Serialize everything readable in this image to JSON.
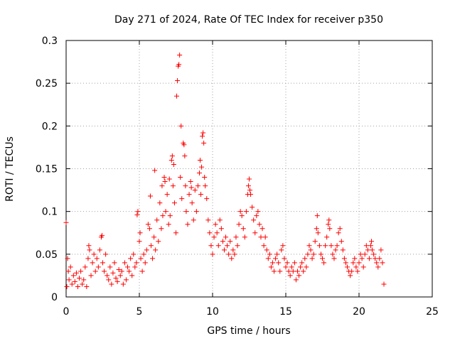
{
  "chart_data": {
    "type": "scatter",
    "title": "Day 271 of 2024, Rate Of TEC Index for receiver p350",
    "xlabel": "GPS time / hours",
    "ylabel": "ROTI / TECUs",
    "xlim": [
      0,
      25
    ],
    "ylim": [
      0,
      0.3
    ],
    "xticks": [
      0,
      5,
      10,
      15,
      20,
      25
    ],
    "yticks": [
      0,
      0.05,
      0.1,
      0.15,
      0.2,
      0.25,
      0.3
    ],
    "xtick_labels": [
      "0",
      "5",
      "10",
      "15",
      "20",
      "25"
    ],
    "ytick_labels": [
      "0",
      "0.05",
      "0.1",
      "0.15",
      "0.2",
      "0.25",
      "0.3"
    ],
    "grid": true,
    "legend": "none",
    "marker": "+",
    "color": "#ff0000",
    "points": [
      [
        0.0,
        0.087
      ],
      [
        0.05,
        0.012
      ],
      [
        0.1,
        0.045
      ],
      [
        0.15,
        0.03
      ],
      [
        0.2,
        0.02
      ],
      [
        0.3,
        0.035
      ],
      [
        0.4,
        0.015
      ],
      [
        0.5,
        0.025
      ],
      [
        0.6,
        0.018
      ],
      [
        0.7,
        0.028
      ],
      [
        0.8,
        0.012
      ],
      [
        0.9,
        0.022
      ],
      [
        1.0,
        0.03
      ],
      [
        1.1,
        0.015
      ],
      [
        1.2,
        0.02
      ],
      [
        1.3,
        0.035
      ],
      [
        1.4,
        0.012
      ],
      [
        1.5,
        0.045
      ],
      [
        1.55,
        0.06
      ],
      [
        1.6,
        0.055
      ],
      [
        1.7,
        0.025
      ],
      [
        1.8,
        0.04
      ],
      [
        1.9,
        0.05
      ],
      [
        2.0,
        0.03
      ],
      [
        2.1,
        0.045
      ],
      [
        2.2,
        0.035
      ],
      [
        2.3,
        0.055
      ],
      [
        2.4,
        0.07
      ],
      [
        2.45,
        0.072
      ],
      [
        2.5,
        0.04
      ],
      [
        2.6,
        0.03
      ],
      [
        2.7,
        0.05
      ],
      [
        2.8,
        0.025
      ],
      [
        2.9,
        0.02
      ],
      [
        3.0,
        0.035
      ],
      [
        3.1,
        0.015
      ],
      [
        3.2,
        0.028
      ],
      [
        3.3,
        0.04
      ],
      [
        3.4,
        0.022
      ],
      [
        3.5,
        0.018
      ],
      [
        3.6,
        0.032
      ],
      [
        3.7,
        0.025
      ],
      [
        3.8,
        0.03
      ],
      [
        3.9,
        0.015
      ],
      [
        4.0,
        0.04
      ],
      [
        4.1,
        0.02
      ],
      [
        4.2,
        0.035
      ],
      [
        4.3,
        0.03
      ],
      [
        4.4,
        0.045
      ],
      [
        4.5,
        0.025
      ],
      [
        4.6,
        0.05
      ],
      [
        4.7,
        0.035
      ],
      [
        4.8,
        0.04
      ],
      [
        4.85,
        0.096
      ],
      [
        4.9,
        0.1
      ],
      [
        5.0,
        0.065
      ],
      [
        5.05,
        0.075
      ],
      [
        5.1,
        0.045
      ],
      [
        5.2,
        0.03
      ],
      [
        5.3,
        0.05
      ],
      [
        5.4,
        0.04
      ],
      [
        5.5,
        0.055
      ],
      [
        5.6,
        0.085
      ],
      [
        5.7,
        0.08
      ],
      [
        5.75,
        0.118
      ],
      [
        5.8,
        0.06
      ],
      [
        5.9,
        0.045
      ],
      [
        6.0,
        0.07
      ],
      [
        6.05,
        0.148
      ],
      [
        6.1,
        0.055
      ],
      [
        6.2,
        0.09
      ],
      [
        6.3,
        0.065
      ],
      [
        6.4,
        0.11
      ],
      [
        6.5,
        0.08
      ],
      [
        6.55,
        0.13
      ],
      [
        6.6,
        0.095
      ],
      [
        6.7,
        0.14
      ],
      [
        6.75,
        0.135
      ],
      [
        6.8,
        0.1
      ],
      [
        6.9,
        0.12
      ],
      [
        7.0,
        0.085
      ],
      [
        7.05,
        0.138
      ],
      [
        7.1,
        0.095
      ],
      [
        7.2,
        0.16
      ],
      [
        7.25,
        0.165
      ],
      [
        7.3,
        0.13
      ],
      [
        7.35,
        0.155
      ],
      [
        7.4,
        0.11
      ],
      [
        7.5,
        0.075
      ],
      [
        7.55,
        0.235
      ],
      [
        7.6,
        0.253
      ],
      [
        7.65,
        0.27
      ],
      [
        7.7,
        0.272
      ],
      [
        7.75,
        0.283
      ],
      [
        7.8,
        0.14
      ],
      [
        7.85,
        0.2
      ],
      [
        7.9,
        0.115
      ],
      [
        8.0,
        0.18
      ],
      [
        8.05,
        0.178
      ],
      [
        8.1,
        0.165
      ],
      [
        8.15,
        0.13
      ],
      [
        8.2,
        0.1
      ],
      [
        8.3,
        0.085
      ],
      [
        8.4,
        0.12
      ],
      [
        8.5,
        0.135
      ],
      [
        8.55,
        0.128
      ],
      [
        8.6,
        0.11
      ],
      [
        8.7,
        0.09
      ],
      [
        8.8,
        0.125
      ],
      [
        8.9,
        0.1
      ],
      [
        9.0,
        0.13
      ],
      [
        9.1,
        0.145
      ],
      [
        9.15,
        0.16
      ],
      [
        9.2,
        0.12
      ],
      [
        9.25,
        0.152
      ],
      [
        9.3,
        0.188
      ],
      [
        9.35,
        0.192
      ],
      [
        9.4,
        0.18
      ],
      [
        9.45,
        0.14
      ],
      [
        9.5,
        0.13
      ],
      [
        9.6,
        0.115
      ],
      [
        9.7,
        0.09
      ],
      [
        9.8,
        0.075
      ],
      [
        9.9,
        0.06
      ],
      [
        10.0,
        0.05
      ],
      [
        10.1,
        0.07
      ],
      [
        10.2,
        0.085
      ],
      [
        10.3,
        0.075
      ],
      [
        10.4,
        0.06
      ],
      [
        10.5,
        0.09
      ],
      [
        10.6,
        0.08
      ],
      [
        10.7,
        0.065
      ],
      [
        10.8,
        0.055
      ],
      [
        10.9,
        0.07
      ],
      [
        11.0,
        0.06
      ],
      [
        11.1,
        0.05
      ],
      [
        11.2,
        0.065
      ],
      [
        11.3,
        0.045
      ],
      [
        11.4,
        0.055
      ],
      [
        11.5,
        0.05
      ],
      [
        11.6,
        0.07
      ],
      [
        11.7,
        0.06
      ],
      [
        11.8,
        0.085
      ],
      [
        11.9,
        0.1
      ],
      [
        12.0,
        0.095
      ],
      [
        12.1,
        0.08
      ],
      [
        12.2,
        0.07
      ],
      [
        12.3,
        0.1
      ],
      [
        12.4,
        0.12
      ],
      [
        12.45,
        0.13
      ],
      [
        12.5,
        0.138
      ],
      [
        12.55,
        0.125
      ],
      [
        12.6,
        0.12
      ],
      [
        12.7,
        0.105
      ],
      [
        12.8,
        0.09
      ],
      [
        12.9,
        0.075
      ],
      [
        13.0,
        0.095
      ],
      [
        13.1,
        0.1
      ],
      [
        13.2,
        0.085
      ],
      [
        13.3,
        0.07
      ],
      [
        13.4,
        0.08
      ],
      [
        13.5,
        0.06
      ],
      [
        13.6,
        0.07
      ],
      [
        13.7,
        0.055
      ],
      [
        13.8,
        0.045
      ],
      [
        13.9,
        0.05
      ],
      [
        14.0,
        0.035
      ],
      [
        14.1,
        0.04
      ],
      [
        14.2,
        0.03
      ],
      [
        14.3,
        0.045
      ],
      [
        14.4,
        0.05
      ],
      [
        14.5,
        0.04
      ],
      [
        14.6,
        0.03
      ],
      [
        14.7,
        0.055
      ],
      [
        14.8,
        0.06
      ],
      [
        14.9,
        0.045
      ],
      [
        15.0,
        0.035
      ],
      [
        15.1,
        0.04
      ],
      [
        15.2,
        0.03
      ],
      [
        15.3,
        0.025
      ],
      [
        15.4,
        0.035
      ],
      [
        15.5,
        0.03
      ],
      [
        15.6,
        0.04
      ],
      [
        15.7,
        0.02
      ],
      [
        15.8,
        0.03
      ],
      [
        15.9,
        0.025
      ],
      [
        16.0,
        0.035
      ],
      [
        16.1,
        0.04
      ],
      [
        16.2,
        0.03
      ],
      [
        16.3,
        0.045
      ],
      [
        16.4,
        0.035
      ],
      [
        16.5,
        0.05
      ],
      [
        16.6,
        0.06
      ],
      [
        16.7,
        0.055
      ],
      [
        16.8,
        0.045
      ],
      [
        16.9,
        0.05
      ],
      [
        17.0,
        0.065
      ],
      [
        17.1,
        0.08
      ],
      [
        17.15,
        0.095
      ],
      [
        17.2,
        0.075
      ],
      [
        17.3,
        0.06
      ],
      [
        17.4,
        0.05
      ],
      [
        17.5,
        0.045
      ],
      [
        17.6,
        0.04
      ],
      [
        17.7,
        0.06
      ],
      [
        17.8,
        0.07
      ],
      [
        17.9,
        0.085
      ],
      [
        17.95,
        0.09
      ],
      [
        18.0,
        0.08
      ],
      [
        18.1,
        0.06
      ],
      [
        18.2,
        0.05
      ],
      [
        18.3,
        0.045
      ],
      [
        18.4,
        0.055
      ],
      [
        18.5,
        0.06
      ],
      [
        18.6,
        0.075
      ],
      [
        18.7,
        0.08
      ],
      [
        18.8,
        0.065
      ],
      [
        18.9,
        0.055
      ],
      [
        19.0,
        0.045
      ],
      [
        19.1,
        0.04
      ],
      [
        19.2,
        0.035
      ],
      [
        19.3,
        0.03
      ],
      [
        19.4,
        0.025
      ],
      [
        19.5,
        0.03
      ],
      [
        19.6,
        0.04
      ],
      [
        19.7,
        0.045
      ],
      [
        19.8,
        0.035
      ],
      [
        19.9,
        0.03
      ],
      [
        20.0,
        0.04
      ],
      [
        20.1,
        0.05
      ],
      [
        20.2,
        0.045
      ],
      [
        20.3,
        0.035
      ],
      [
        20.4,
        0.05
      ],
      [
        20.5,
        0.06
      ],
      [
        20.6,
        0.055
      ],
      [
        20.7,
        0.045
      ],
      [
        20.8,
        0.06
      ],
      [
        20.85,
        0.065
      ],
      [
        20.9,
        0.055
      ],
      [
        21.0,
        0.05
      ],
      [
        21.1,
        0.045
      ],
      [
        21.2,
        0.04
      ],
      [
        21.3,
        0.035
      ],
      [
        21.4,
        0.045
      ],
      [
        21.5,
        0.055
      ],
      [
        21.6,
        0.04
      ],
      [
        21.7,
        0.015
      ]
    ]
  }
}
